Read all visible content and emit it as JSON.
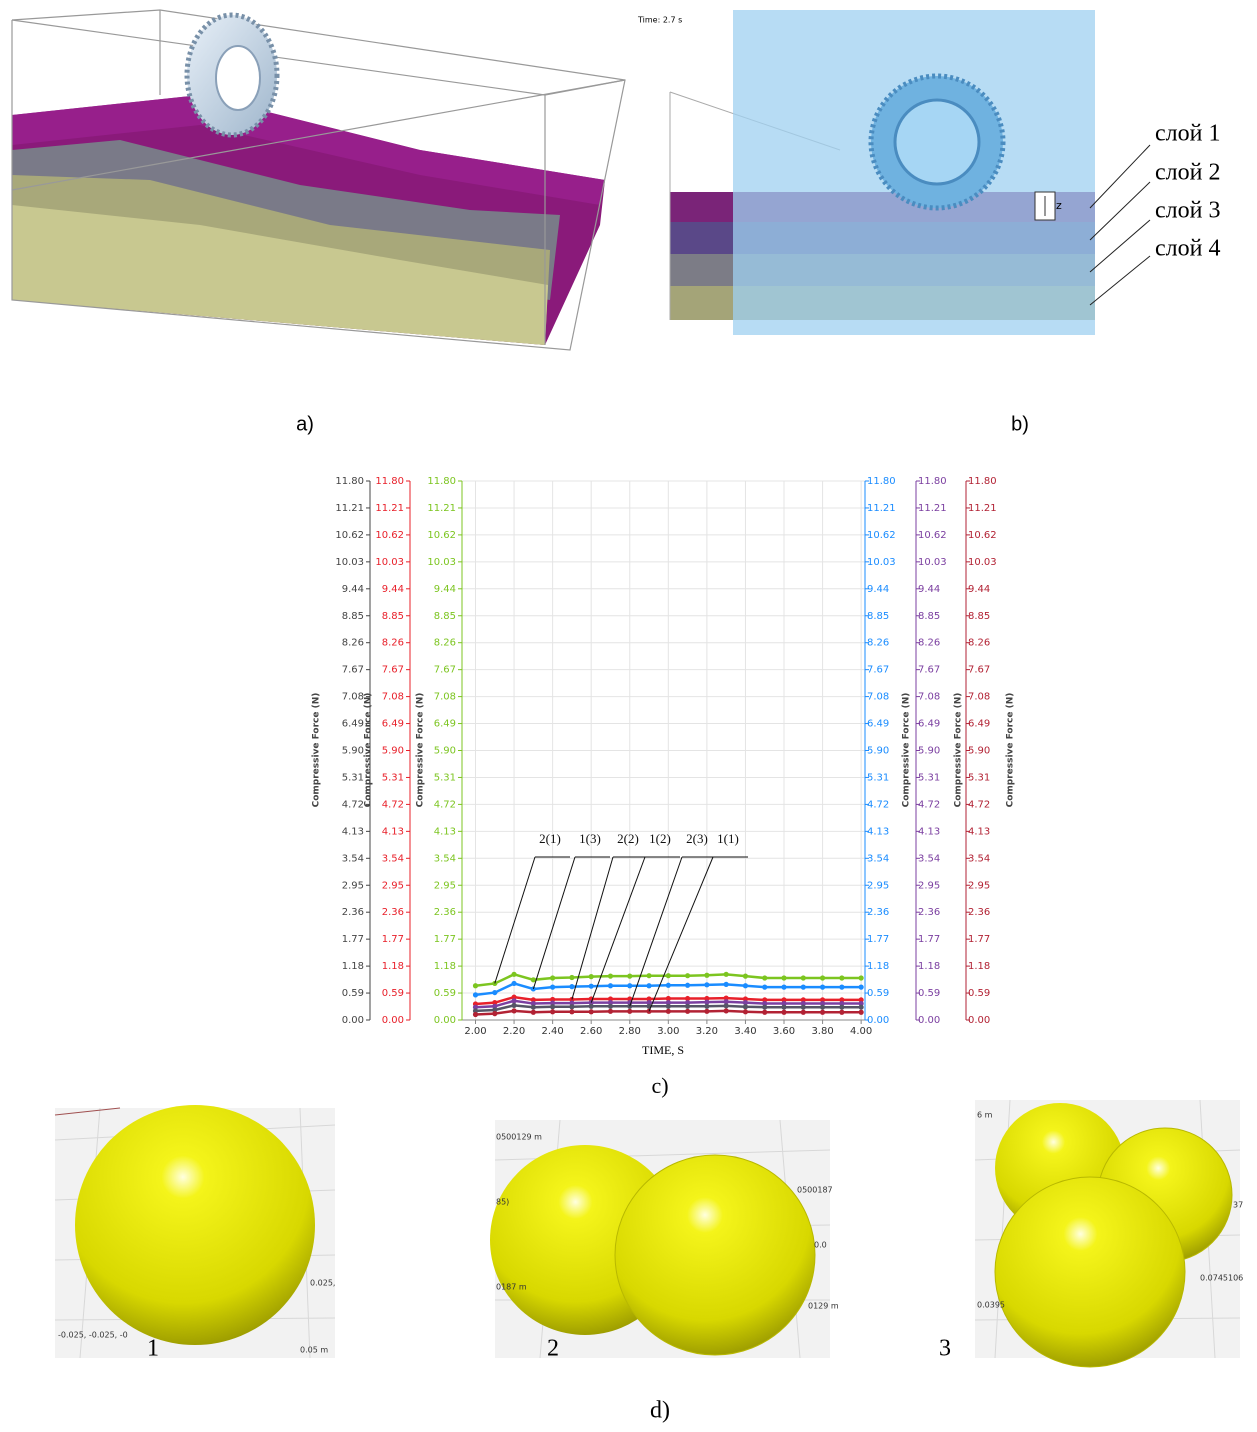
{
  "panel_a": {
    "label": "a)"
  },
  "panel_b": {
    "label": "b)",
    "time": "Time: 2.7 s",
    "z": "z",
    "layers": [
      "слой 1",
      "слой 2",
      "слой 3",
      "слой 4"
    ]
  },
  "chart_data": {
    "type": "line",
    "caption": "c)",
    "xlabel": "TIME, S",
    "x": [
      2.0,
      2.1,
      2.2,
      2.3,
      2.4,
      2.5,
      2.6,
      2.7,
      2.8,
      2.9,
      3.0,
      3.1,
      3.2,
      3.3,
      3.4,
      3.5,
      3.6,
      3.7,
      3.8,
      3.9,
      4.0
    ],
    "xlim": [
      1.93,
      4.02
    ],
    "xticks": [
      {
        "value": 2.0,
        "label": "2.00"
      },
      {
        "value": 2.2,
        "label": "2.20"
      },
      {
        "value": 2.4,
        "label": "2.40"
      },
      {
        "value": 2.6,
        "label": "2.60"
      },
      {
        "value": 2.8,
        "label": "2.80"
      },
      {
        "value": 3.0,
        "label": "3.00"
      },
      {
        "value": 3.2,
        "label": "3.20"
      },
      {
        "value": 3.4,
        "label": "3.40"
      },
      {
        "value": 3.6,
        "label": "3.60"
      },
      {
        "value": 3.8,
        "label": "3.80"
      },
      {
        "value": 4.0,
        "label": "4.00"
      }
    ],
    "ylim": [
      0,
      11.8
    ],
    "yticks": [
      {
        "value": 0,
        "label": "0.00"
      },
      0.59,
      1.18,
      1.77,
      2.36,
      2.95,
      3.54,
      4.13,
      4.72,
      5.31,
      {
        "value": 5.9,
        "label": "5.90"
      },
      6.49,
      7.08,
      7.67,
      8.26,
      8.85,
      9.44,
      10.03,
      10.62,
      11.21,
      {
        "value": 11.8,
        "label": "11.80"
      }
    ],
    "grid": true,
    "y_axes": [
      {
        "label": "Compressive Force (N)",
        "color": "#444444",
        "side": "left"
      },
      {
        "label": "Compressive Force (N)",
        "color": "#e8202a",
        "side": "left"
      },
      {
        "label": "Compressive Force (N)",
        "color": "#7cc520",
        "side": "left"
      },
      {
        "label": "Compressive Force (N)",
        "color": "#1a8cff",
        "side": "right"
      },
      {
        "label": "Compressive Force (N)",
        "color": "#7b3fa0",
        "side": "right"
      },
      {
        "label": "Compressive Force (N)",
        "color": "#b22234",
        "side": "right"
      }
    ],
    "series": [
      {
        "name": "2(1)",
        "color": "#7cc520",
        "values": [
          0.75,
          0.8,
          1.0,
          0.88,
          0.92,
          0.93,
          0.95,
          0.96,
          0.96,
          0.97,
          0.97,
          0.97,
          0.98,
          1.0,
          0.96,
          0.92,
          0.92,
          0.92,
          0.92,
          0.92,
          0.92
        ]
      },
      {
        "name": "1(3)",
        "color": "#1a8cff",
        "values": [
          0.55,
          0.6,
          0.8,
          0.68,
          0.72,
          0.73,
          0.74,
          0.75,
          0.75,
          0.75,
          0.76,
          0.76,
          0.77,
          0.78,
          0.75,
          0.72,
          0.72,
          0.72,
          0.72,
          0.72,
          0.72
        ]
      },
      {
        "name": "2(2)",
        "color": "#e8202a",
        "values": [
          0.35,
          0.38,
          0.5,
          0.44,
          0.45,
          0.45,
          0.46,
          0.46,
          0.46,
          0.46,
          0.47,
          0.47,
          0.47,
          0.48,
          0.46,
          0.44,
          0.44,
          0.44,
          0.44,
          0.44,
          0.44
        ]
      },
      {
        "name": "1(2)",
        "color": "#7b3fa0",
        "values": [
          0.28,
          0.3,
          0.42,
          0.36,
          0.37,
          0.37,
          0.38,
          0.38,
          0.38,
          0.38,
          0.38,
          0.38,
          0.39,
          0.4,
          0.38,
          0.36,
          0.36,
          0.36,
          0.36,
          0.36,
          0.36
        ]
      },
      {
        "name": "2(3)",
        "color": "#555566",
        "values": [
          0.2,
          0.22,
          0.32,
          0.28,
          0.29,
          0.29,
          0.3,
          0.3,
          0.3,
          0.3,
          0.3,
          0.3,
          0.3,
          0.31,
          0.29,
          0.28,
          0.28,
          0.28,
          0.28,
          0.28,
          0.28
        ]
      },
      {
        "name": "1(1)",
        "color": "#b22234",
        "values": [
          0.12,
          0.14,
          0.2,
          0.17,
          0.18,
          0.18,
          0.18,
          0.19,
          0.19,
          0.19,
          0.19,
          0.19,
          0.19,
          0.2,
          0.18,
          0.17,
          0.17,
          0.17,
          0.17,
          0.17,
          0.17
        ]
      }
    ]
  },
  "panel_d": {
    "label": "d)",
    "images": [
      {
        "label": "1",
        "coords": [
          "0.025,",
          "-0.025, -0.025, -0",
          "0.05 m"
        ]
      },
      {
        "label": "2",
        "coords": [
          "0500129 m",
          "0500187",
          "85)",
          "0.0",
          "0187 m",
          "0129 m"
        ]
      },
      {
        "label": "3",
        "coords": [
          "6 m",
          "37",
          "0.0745106",
          "0.0395"
        ]
      }
    ]
  }
}
